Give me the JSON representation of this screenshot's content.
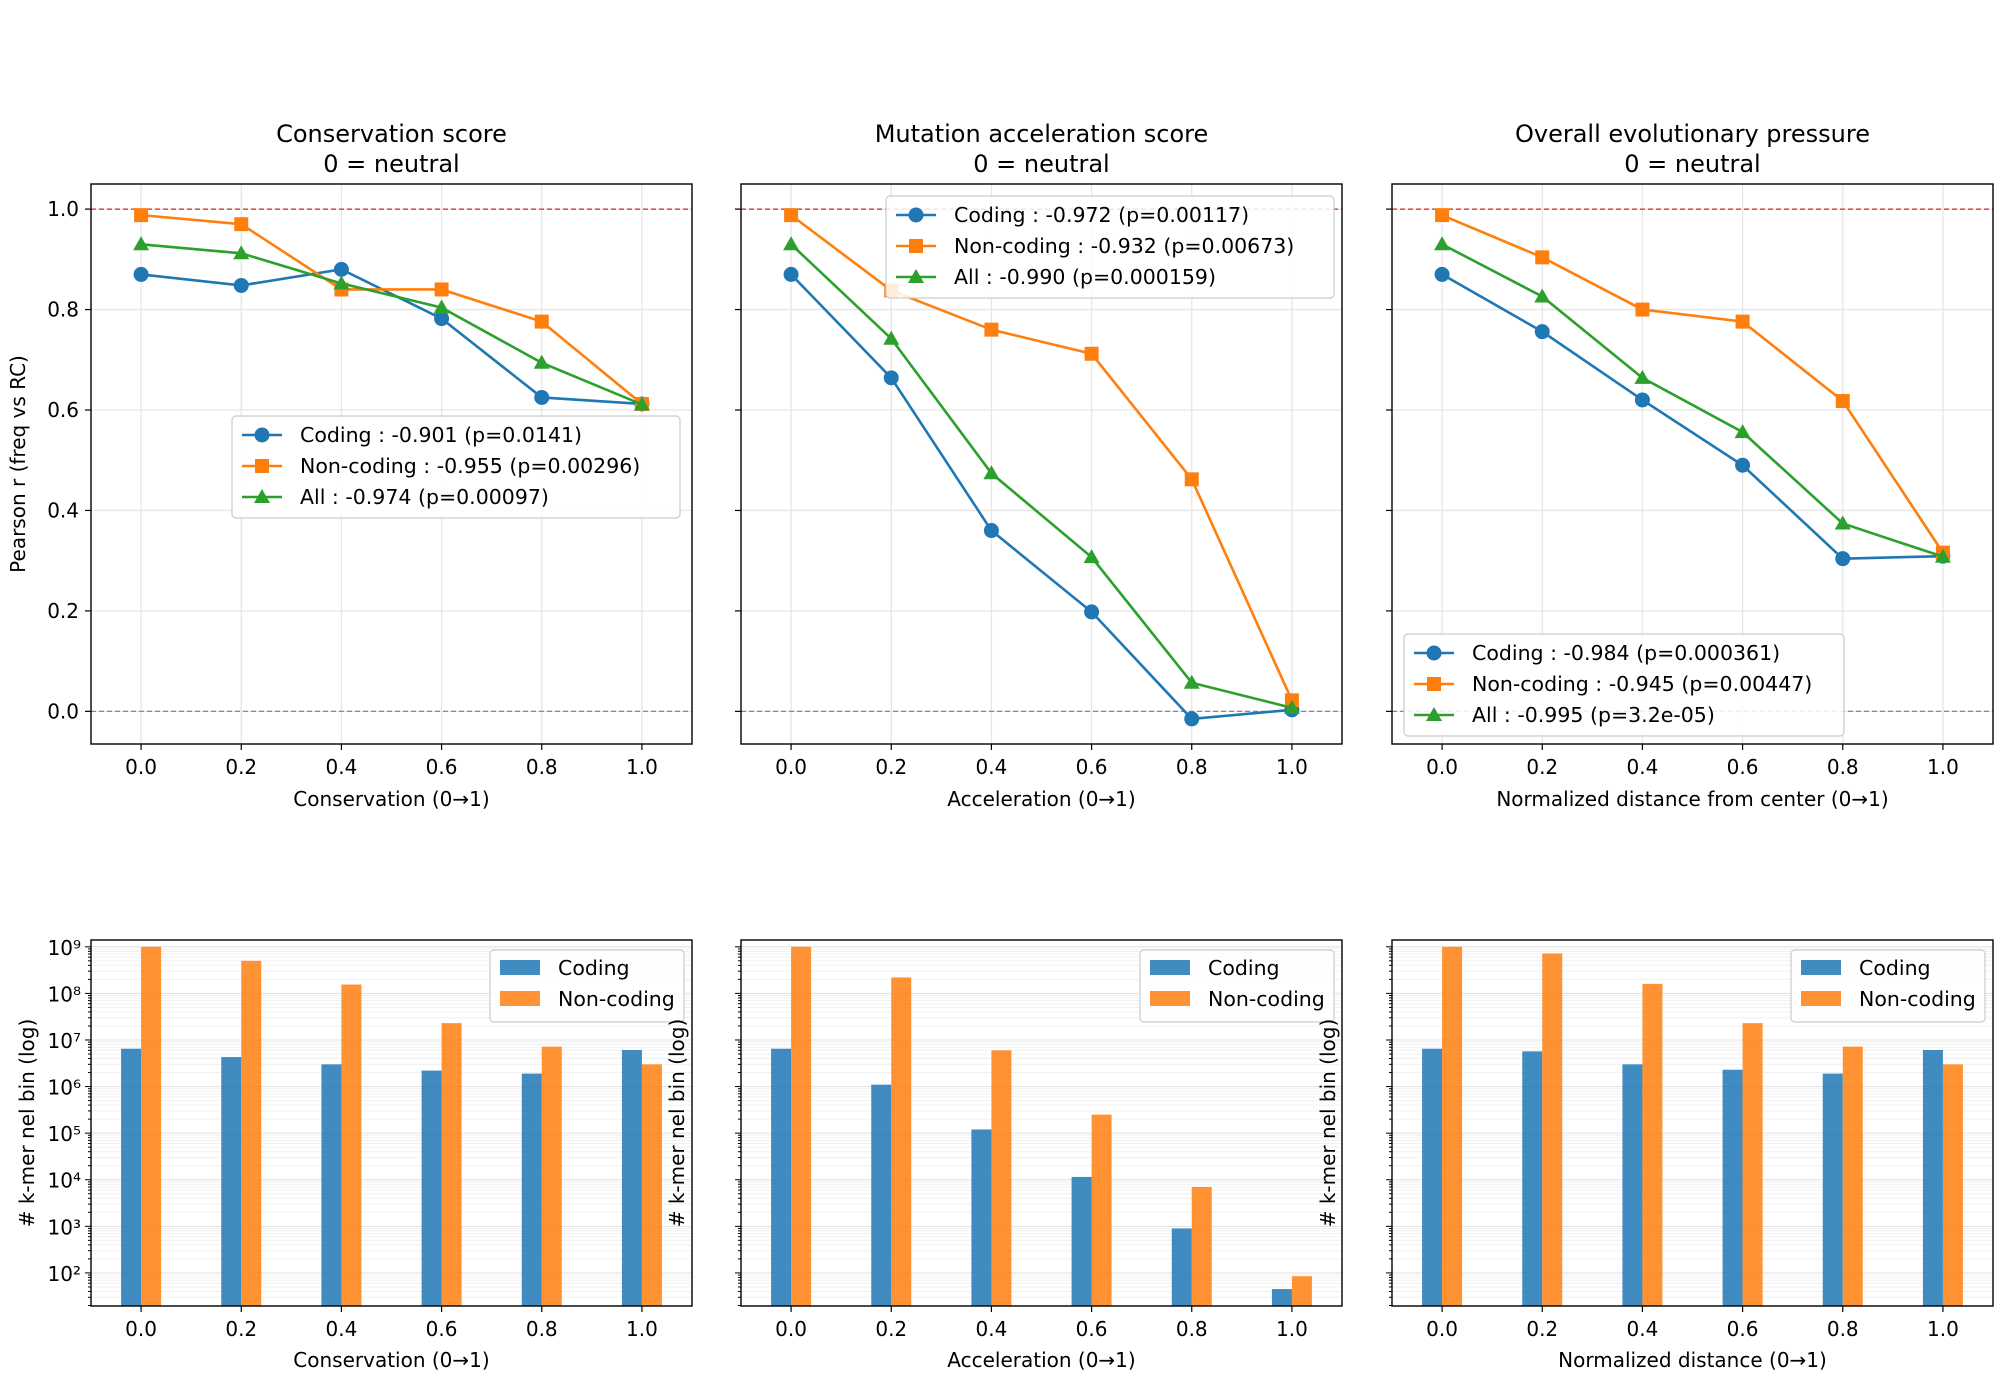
{
  "chart_data": [
    {
      "type": "line",
      "title": "Conservation score\n0 = neutral",
      "xlabel": "Conservation (0→1)",
      "ylabel": "Pearson r (freq vs RC)",
      "x": [
        0.0,
        0.2,
        0.4,
        0.6,
        0.8,
        1.0
      ],
      "xticks": [
        "0.0",
        "0.2",
        "0.4",
        "0.6",
        "0.8",
        "1.0"
      ],
      "xlim": [
        -0.1,
        1.1
      ],
      "ylim": [
        -0.065,
        1.05
      ],
      "yticks": [
        "0.0",
        "0.2",
        "0.4",
        "0.6",
        "0.8",
        "1.0"
      ],
      "reference_lines": [
        {
          "y": 1.0,
          "color": "#d62728",
          "style": "dashed"
        },
        {
          "y": 0.0,
          "color": "#888888",
          "style": "dashed"
        }
      ],
      "grid": true,
      "legend_position": "center-right",
      "series": [
        {
          "name": "Coding : -0.901 (p=0.0141)",
          "values": [
            0.87,
            0.848,
            0.88,
            0.782,
            0.625,
            0.612
          ],
          "color": "#1f77b4",
          "marker": "circle"
        },
        {
          "name": "Non-coding : -0.955 (p=0.00296)",
          "values": [
            0.988,
            0.97,
            0.84,
            0.84,
            0.776,
            0.612
          ],
          "color": "#ff7f0e",
          "marker": "square"
        },
        {
          "name": "All : -0.974 (p=0.00097)",
          "values": [
            0.93,
            0.912,
            0.852,
            0.804,
            0.694,
            0.611
          ],
          "color": "#2ca02c",
          "marker": "triangle"
        }
      ]
    },
    {
      "type": "line",
      "title": "Mutation acceleration score\n0 = neutral",
      "xlabel": "Acceleration (0→1)",
      "ylabel": "",
      "x": [
        0.0,
        0.2,
        0.4,
        0.6,
        0.8,
        1.0
      ],
      "xticks": [
        "0.0",
        "0.2",
        "0.4",
        "0.6",
        "0.8",
        "1.0"
      ],
      "xlim": [
        -0.1,
        1.1
      ],
      "ylim": [
        -0.065,
        1.05
      ],
      "yticks": [],
      "reference_lines": [
        {
          "y": 1.0,
          "color": "#d62728",
          "style": "dashed"
        },
        {
          "y": 0.0,
          "color": "#888888",
          "style": "dashed"
        }
      ],
      "grid": true,
      "legend_position": "top-right",
      "series": [
        {
          "name": "Coding : -0.972 (p=0.00117)",
          "values": [
            0.87,
            0.664,
            0.36,
            0.198,
            -0.015,
            0.003
          ],
          "color": "#1f77b4",
          "marker": "circle"
        },
        {
          "name": "Non-coding : -0.932 (p=0.00673)",
          "values": [
            0.988,
            0.838,
            0.76,
            0.712,
            0.462,
            0.022
          ],
          "color": "#ff7f0e",
          "marker": "square"
        },
        {
          "name": "All : -0.990 (p=0.000159)",
          "values": [
            0.93,
            0.742,
            0.474,
            0.307,
            0.057,
            0.007
          ],
          "color": "#2ca02c",
          "marker": "triangle"
        }
      ]
    },
    {
      "type": "line",
      "title": "Overall evolutionary pressure\n0 = neutral",
      "xlabel": "Normalized distance from center (0→1)",
      "ylabel": "",
      "x": [
        0.0,
        0.2,
        0.4,
        0.6,
        0.8,
        1.0
      ],
      "xticks": [
        "0.0",
        "0.2",
        "0.4",
        "0.6",
        "0.8",
        "1.0"
      ],
      "xlim": [
        -0.1,
        1.1
      ],
      "ylim": [
        -0.065,
        1.05
      ],
      "yticks": [],
      "reference_lines": [
        {
          "y": 1.0,
          "color": "#d62728",
          "style": "dashed"
        },
        {
          "y": 0.0,
          "color": "#888888",
          "style": "dashed"
        }
      ],
      "grid": true,
      "legend_position": "bottom-left",
      "series": [
        {
          "name": "Coding : -0.984 (p=0.000361)",
          "values": [
            0.87,
            0.756,
            0.62,
            0.49,
            0.304,
            0.309
          ],
          "color": "#1f77b4",
          "marker": "circle"
        },
        {
          "name": "Non-coding : -0.945 (p=0.00447)",
          "values": [
            0.988,
            0.904,
            0.8,
            0.776,
            0.618,
            0.316
          ],
          "color": "#ff7f0e",
          "marker": "square"
        },
        {
          "name": "All : -0.995 (p=3.2e-05)",
          "values": [
            0.93,
            0.826,
            0.664,
            0.556,
            0.374,
            0.308
          ],
          "color": "#2ca02c",
          "marker": "triangle"
        }
      ]
    },
    {
      "type": "bar",
      "title": "",
      "xlabel": "Conservation (0→1)",
      "ylabel": "# k-mer nel bin (log)",
      "categories": [
        "0.0",
        "0.2",
        "0.4",
        "0.6",
        "0.8",
        "1.0"
      ],
      "x": [
        0.0,
        0.2,
        0.4,
        0.6,
        0.8,
        1.0
      ],
      "log_y": true,
      "ylim": [
        19.5,
        1400000000
      ],
      "yticks": [
        "10²",
        "10³",
        "10⁴",
        "10⁵",
        "10⁶",
        "10⁷",
        "10⁸",
        "10⁹"
      ],
      "grid": true,
      "legend_position": "top-right",
      "series": [
        {
          "name": "Coding",
          "values": [
            6500000,
            4300000,
            3000000,
            2200000,
            1900000,
            6100000
          ],
          "color": "#1f77b4"
        },
        {
          "name": "Non-coding",
          "values": [
            1000000000,
            500000000,
            155000000,
            23000000,
            7200000,
            3000000
          ],
          "color": "#ff7f0e"
        }
      ]
    },
    {
      "type": "bar",
      "title": "",
      "xlabel": "Acceleration (0→1)",
      "ylabel": "# k-mer nel bin (log)",
      "categories": [
        "0.0",
        "0.2",
        "0.4",
        "0.6",
        "0.8",
        "1.0"
      ],
      "x": [
        0.0,
        0.2,
        0.4,
        0.6,
        0.8,
        1.0
      ],
      "log_y": true,
      "ylim": [
        19.5,
        1400000000
      ],
      "yticks": [],
      "grid": true,
      "legend_position": "top-right",
      "series": [
        {
          "name": "Coding",
          "values": [
            6500000,
            1100000,
            120000,
            11500,
            900,
            45
          ],
          "color": "#1f77b4"
        },
        {
          "name": "Non-coding",
          "values": [
            1000000000,
            220000000,
            6000000,
            250000,
            7000,
            85
          ],
          "color": "#ff7f0e"
        }
      ]
    },
    {
      "type": "bar",
      "title": "",
      "xlabel": "Normalized distance (0→1)",
      "ylabel": "# k-mer nel bin (log)",
      "categories": [
        "0.0",
        "0.2",
        "0.4",
        "0.6",
        "0.8",
        "1.0"
      ],
      "x": [
        0.0,
        0.2,
        0.4,
        0.6,
        0.8,
        1.0
      ],
      "log_y": true,
      "ylim": [
        19.5,
        1400000000
      ],
      "yticks": [],
      "grid": true,
      "legend_position": "top-right",
      "series": [
        {
          "name": "Coding",
          "values": [
            6500000,
            5700000,
            3000000,
            2300000,
            1900000,
            6100000
          ],
          "color": "#1f77b4"
        },
        {
          "name": "Non-coding",
          "values": [
            1000000000,
            720000000,
            160000000,
            23000000,
            7200000,
            3000000
          ],
          "color": "#ff7f0e"
        }
      ]
    }
  ]
}
